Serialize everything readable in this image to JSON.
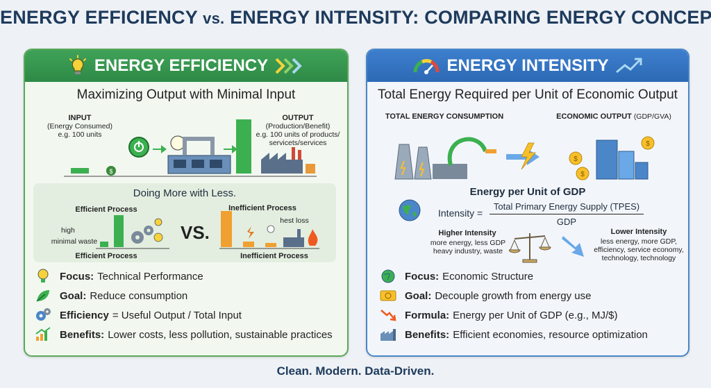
{
  "title": {
    "part1": "ENERGY EFFICIENCY",
    "vs": "vs.",
    "part2": "ENERGY INTENSITY: COMPARING ENERGY CONCEPTS"
  },
  "left": {
    "header": "ENERGY EFFICIENCY",
    "subtitle": "Maximizing Output with Minimal Input",
    "input_label": "INPUT",
    "input_sub": "(Energy Consumed)",
    "input_example": "e.g. 100 units",
    "output_label": "OUTPUT",
    "output_sub": "(Production/Benefit)",
    "output_example": "e.g. 100 units of products/ servicets/services",
    "compare_title": "Doing More with Less.",
    "efficient_top": "Efficient Process",
    "efficient_bottom": "Efficient Process",
    "high": "high",
    "minimal_waste": "minimal waste",
    "vs": "VS.",
    "inefficient_top": "Inefficient Process",
    "inefficient_bottom": "Inefficient Process",
    "heat_loss": "hest loss",
    "bullets": [
      {
        "key": "Focus:",
        "text": "Technical Performance",
        "icon": "lightbulb-icon"
      },
      {
        "key": "Goal:",
        "text": "Reduce consumption",
        "icon": "leaf-icon"
      },
      {
        "key": "Efficiency",
        "text": "= Useful Output / Total Input",
        "icon": "gears-icon"
      },
      {
        "key": "Benefits:",
        "text": "Lower costs, less pollution, sustainable practices",
        "icon": "growth-chart-icon"
      }
    ]
  },
  "right": {
    "header": "ENERGY INTENSITY",
    "subtitle": "Total Energy Required per Unit of Economic Output",
    "total_energy": "TOTAL ENERGY CONSUMPTION",
    "econ_output": "ECONOMIC OUTPUT",
    "econ_output_sub": "(GDP/GVA)",
    "gdp_title": "Energy per Unit of GDP",
    "intensity_label": "Intensity =",
    "numerator": "Total Primary Energy Supply (TPES)",
    "denominator": "GDP",
    "higher_title": "Higher Intensity",
    "higher_desc": "more energy, less GDP heavy industry, waste",
    "lower_title": "Lower Intensity",
    "lower_desc": "less energy, more GDP, efficiency, service economy, technology, technology",
    "bullets": [
      {
        "key": "Focus:",
        "text": "Economic Structure",
        "icon": "globe-icon"
      },
      {
        "key": "Goal:",
        "text": "Decouple growth from energy use",
        "icon": "money-icon"
      },
      {
        "key": "Formula:",
        "text": "Energy per Unit of GDP (e.g., MJ/$)",
        "icon": "trend-down-icon"
      },
      {
        "key": "Benefits:",
        "text": "Efficient economies, resource optimization",
        "icon": "factory-icon"
      }
    ]
  },
  "footer": "Clean. Modern. Data-Driven.",
  "colors": {
    "green": "#2e8a47",
    "blue": "#2d69b5",
    "bar_green": "#3cb050",
    "bar_orange": "#f0a030"
  }
}
